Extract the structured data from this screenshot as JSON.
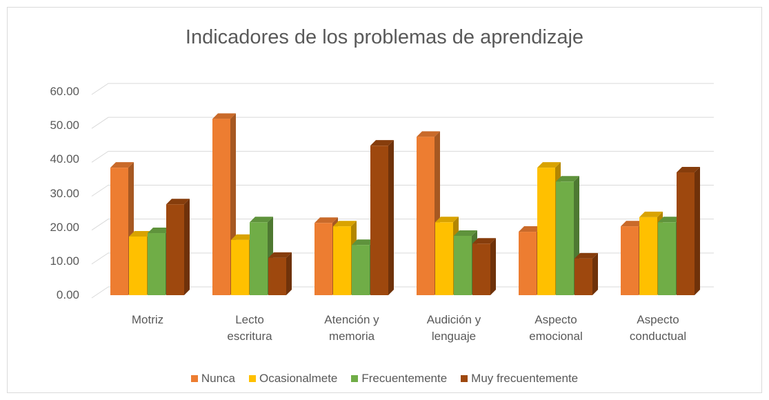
{
  "chart_data": {
    "type": "bar3d",
    "title": "Indicadores de los problemas de aprendizaje",
    "categories": [
      "Motriz",
      "Lecto\nescritura",
      "Atención y\nmemoria",
      "Audición y\nlenguaje",
      "Aspecto\nemocional",
      "Aspecto\nconductual"
    ],
    "series": [
      {
        "name": "Nunca",
        "color": "#ED7D31",
        "values": [
          37.6,
          52.0,
          21.3,
          46.7,
          18.7,
          20.3
        ]
      },
      {
        "name": "Ocasionalmete",
        "color": "#FFC000",
        "values": [
          17.3,
          16.3,
          20.3,
          21.5,
          37.6,
          23.0
        ]
      },
      {
        "name": "Frecuentemente",
        "color": "#70AD47",
        "values": [
          18.3,
          21.5,
          14.8,
          17.5,
          33.5,
          21.5
        ]
      },
      {
        "name": "Muy frecuentemente",
        "color": "#9E480E",
        "values": [
          26.8,
          11.0,
          44.1,
          15.2,
          10.8,
          36.2
        ]
      }
    ],
    "ylim": [
      0,
      60
    ],
    "yticks": [
      {
        "value": 0,
        "label": "0.00"
      },
      {
        "value": 10,
        "label": "10.00"
      },
      {
        "value": 20,
        "label": "20.00"
      },
      {
        "value": 30,
        "label": "30.00"
      },
      {
        "value": 40,
        "label": "40.00"
      },
      {
        "value": 50,
        "label": "50.00"
      },
      {
        "value": 60,
        "label": "60.00"
      }
    ],
    "grid": true,
    "legend": "bottom"
  }
}
